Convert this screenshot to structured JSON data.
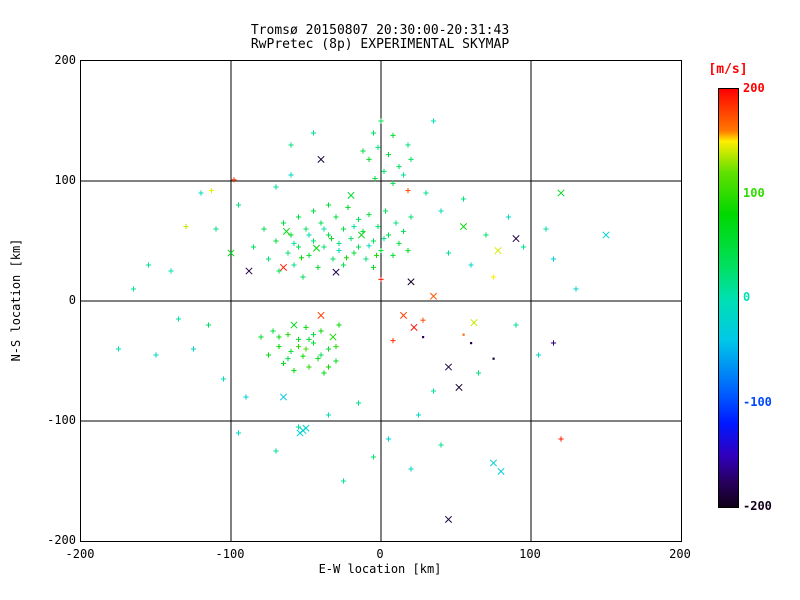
{
  "title": {
    "line1": "Tromsø 20150807 20:30:00-20:31:43",
    "line2": "RwPretec (8p) EXPERIMENTAL SKYMAP"
  },
  "axes": {
    "xlabel": "E-W location [km]",
    "ylabel": "N-S location [km]",
    "xlim": [
      -200,
      200
    ],
    "ylim": [
      -200,
      200
    ],
    "xticks": [
      -200,
      -100,
      0,
      100,
      200
    ],
    "yticks": [
      -200,
      -100,
      0,
      100,
      200
    ],
    "gridlines": [
      -100,
      0,
      100
    ],
    "grid_color": "#000000",
    "background": "#ffffff"
  },
  "colorbar": {
    "label": "[m/s]",
    "label_color": "#ff0000",
    "ticks": [
      200,
      100,
      0,
      -100,
      -200
    ],
    "range": [
      -200,
      200
    ]
  },
  "chart_data": {
    "type": "scatter",
    "title": "Tromsø 20150807 20:30:00-20:31:43 / RwPretec (8p) EXPERIMENTAL SKYMAP",
    "xlabel": "E-W location [km]",
    "ylabel": "N-S location [km]",
    "xlim": [
      -200,
      200
    ],
    "ylim": [
      -200,
      200
    ],
    "xticks": [
      -200,
      -100,
      0,
      100,
      200
    ],
    "yticks": [
      -200,
      -100,
      0,
      100,
      200
    ],
    "grid": true,
    "gridlines": [
      -100,
      0,
      100
    ],
    "color_scale": {
      "label": "[m/s]",
      "range": [
        -200,
        200
      ],
      "stops": [
        {
          "v": 200,
          "c": "#ff0000"
        },
        {
          "v": 160,
          "c": "#ff7800"
        },
        {
          "v": 150,
          "c": "#ffee00"
        },
        {
          "v": 120,
          "c": "#60e000"
        },
        {
          "v": 80,
          "c": "#00d800"
        },
        {
          "v": 30,
          "c": "#00e060"
        },
        {
          "v": 0,
          "c": "#00e0b0"
        },
        {
          "v": -40,
          "c": "#00c8e8"
        },
        {
          "v": -90,
          "c": "#0060ff"
        },
        {
          "v": -120,
          "c": "#0018ff"
        },
        {
          "v": -150,
          "c": "#3000c0"
        },
        {
          "v": -175,
          "c": "#280060"
        },
        {
          "v": -200,
          "c": "#100018"
        }
      ]
    },
    "point_format": [
      "x_km",
      "y_km",
      "velocity_m_per_s",
      "marker:0=plus,1=x,2=dot"
    ],
    "points": [
      [
        -85,
        45,
        30,
        0
      ],
      [
        -78,
        60,
        40,
        0
      ],
      [
        -75,
        35,
        20,
        0
      ],
      [
        -70,
        50,
        55,
        0
      ],
      [
        -68,
        25,
        35,
        0
      ],
      [
        -65,
        65,
        45,
        0
      ],
      [
        -62,
        40,
        25,
        0
      ],
      [
        -60,
        55,
        60,
        0
      ],
      [
        -58,
        30,
        15,
        0
      ],
      [
        -55,
        70,
        50,
        0
      ],
      [
        -55,
        45,
        35,
        0
      ],
      [
        -52,
        20,
        40,
        0
      ],
      [
        -50,
        60,
        30,
        0
      ],
      [
        -48,
        38,
        55,
        0
      ],
      [
        -45,
        75,
        45,
        0
      ],
      [
        -45,
        50,
        20,
        0
      ],
      [
        -42,
        28,
        60,
        0
      ],
      [
        -40,
        65,
        35,
        0
      ],
      [
        -38,
        45,
        25,
        0
      ],
      [
        -35,
        80,
        50,
        0
      ],
      [
        -35,
        55,
        40,
        0
      ],
      [
        -32,
        35,
        30,
        0
      ],
      [
        -30,
        70,
        55,
        0
      ],
      [
        -28,
        48,
        20,
        0
      ],
      [
        -25,
        60,
        45,
        0
      ],
      [
        -25,
        30,
        35,
        0
      ],
      [
        -22,
        78,
        60,
        0
      ],
      [
        -20,
        52,
        25,
        0
      ],
      [
        -18,
        40,
        50,
        0
      ],
      [
        -15,
        68,
        30,
        0
      ],
      [
        -15,
        45,
        40,
        0
      ],
      [
        -12,
        58,
        55,
        0
      ],
      [
        -10,
        35,
        20,
        0
      ],
      [
        -8,
        72,
        45,
        0
      ],
      [
        -5,
        50,
        35,
        0
      ],
      [
        -5,
        28,
        60,
        0
      ],
      [
        -2,
        62,
        25,
        0
      ],
      [
        0,
        42,
        50,
        0
      ],
      [
        3,
        75,
        30,
        0
      ],
      [
        5,
        55,
        40,
        0
      ],
      [
        8,
        38,
        55,
        0
      ],
      [
        10,
        65,
        20,
        0
      ],
      [
        12,
        48,
        45,
        0
      ],
      [
        15,
        58,
        35,
        0
      ],
      [
        18,
        42,
        60,
        0
      ],
      [
        20,
        70,
        25,
        0
      ],
      [
        -58,
        48,
        10,
        0
      ],
      [
        -48,
        55,
        -5,
        0
      ],
      [
        -38,
        60,
        5,
        0
      ],
      [
        -28,
        42,
        -10,
        0
      ],
      [
        -18,
        62,
        8,
        0
      ],
      [
        -8,
        46,
        -8,
        0
      ],
      [
        2,
        52,
        12,
        0
      ],
      [
        -63,
        58,
        70,
        1
      ],
      [
        -53,
        36,
        80,
        0
      ],
      [
        -43,
        44,
        75,
        1
      ],
      [
        -33,
        52,
        65,
        0
      ],
      [
        -23,
        36,
        85,
        0
      ],
      [
        -13,
        55,
        70,
        1
      ],
      [
        -3,
        38,
        90,
        0
      ],
      [
        -80,
        -30,
        60,
        0
      ],
      [
        -75,
        -45,
        70,
        0
      ],
      [
        -72,
        -25,
        50,
        0
      ],
      [
        -68,
        -38,
        80,
        0
      ],
      [
        -65,
        -52,
        65,
        0
      ],
      [
        -62,
        -28,
        90,
        0
      ],
      [
        -60,
        -42,
        55,
        0
      ],
      [
        -58,
        -58,
        75,
        0
      ],
      [
        -55,
        -32,
        60,
        0
      ],
      [
        -52,
        -46,
        85,
        0
      ],
      [
        -50,
        -22,
        70,
        0
      ],
      [
        -48,
        -55,
        95,
        0
      ],
      [
        -45,
        -35,
        50,
        0
      ],
      [
        -42,
        -48,
        65,
        0
      ],
      [
        -40,
        -25,
        80,
        0
      ],
      [
        -38,
        -60,
        70,
        0
      ],
      [
        -35,
        -40,
        55,
        0
      ],
      [
        -32,
        -30,
        90,
        1
      ],
      [
        -30,
        -50,
        60,
        0
      ],
      [
        -28,
        -20,
        75,
        0
      ],
      [
        -55,
        -38,
        100,
        0
      ],
      [
        -45,
        -28,
        45,
        0
      ],
      [
        -62,
        -48,
        40,
        0
      ],
      [
        -35,
        -55,
        85,
        0
      ],
      [
        -50,
        -40,
        110,
        0
      ],
      [
        -40,
        -45,
        35,
        0
      ],
      [
        -58,
        -20,
        65,
        1
      ],
      [
        -30,
        -38,
        95,
        0
      ],
      [
        -68,
        -30,
        75,
        0
      ],
      [
        -48,
        -32,
        58,
        0
      ],
      [
        0,
        150,
        40,
        0
      ],
      [
        -5,
        140,
        30,
        0
      ],
      [
        8,
        138,
        55,
        0
      ],
      [
        -2,
        128,
        20,
        0
      ],
      [
        5,
        122,
        45,
        0
      ],
      [
        -8,
        118,
        60,
        0
      ],
      [
        12,
        112,
        35,
        0
      ],
      [
        2,
        108,
        25,
        0
      ],
      [
        -4,
        102,
        50,
        0
      ],
      [
        15,
        105,
        15,
        0
      ],
      [
        8,
        98,
        40,
        0
      ],
      [
        20,
        118,
        30,
        0
      ],
      [
        -12,
        125,
        45,
        0
      ],
      [
        18,
        130,
        20,
        0
      ],
      [
        -140,
        25,
        0,
        0
      ],
      [
        -155,
        30,
        10,
        0
      ],
      [
        -120,
        90,
        -10,
        0
      ],
      [
        -135,
        -15,
        5,
        0
      ],
      [
        -125,
        -40,
        -20,
        0
      ],
      [
        -110,
        60,
        15,
        0
      ],
      [
        -105,
        -65,
        -5,
        0
      ],
      [
        -95,
        80,
        20,
        0
      ],
      [
        -150,
        -45,
        -15,
        0
      ],
      [
        -165,
        10,
        8,
        0
      ],
      [
        -90,
        -80,
        -25,
        0
      ],
      [
        -70,
        95,
        10,
        0
      ],
      [
        -60,
        105,
        -10,
        0
      ],
      [
        30,
        90,
        15,
        0
      ],
      [
        40,
        75,
        -5,
        0
      ],
      [
        55,
        85,
        20,
        0
      ],
      [
        45,
        40,
        10,
        0
      ],
      [
        60,
        30,
        -15,
        0
      ],
      [
        70,
        55,
        25,
        0
      ],
      [
        85,
        70,
        -10,
        0
      ],
      [
        95,
        45,
        15,
        0
      ],
      [
        110,
        60,
        5,
        0
      ],
      [
        150,
        55,
        -20,
        1
      ],
      [
        120,
        90,
        60,
        1
      ],
      [
        115,
        35,
        -30,
        0
      ],
      [
        90,
        -20,
        10,
        0
      ],
      [
        105,
        -45,
        -15,
        0
      ],
      [
        65,
        -60,
        20,
        0
      ],
      [
        35,
        -75,
        5,
        0
      ],
      [
        25,
        -95,
        -10,
        0
      ],
      [
        -15,
        -85,
        15,
        0
      ],
      [
        -35,
        -95,
        -5,
        0
      ],
      [
        -55,
        -105,
        10,
        0
      ],
      [
        5,
        -115,
        -20,
        0
      ],
      [
        -5,
        -130,
        25,
        0
      ],
      [
        20,
        -140,
        -15,
        0
      ],
      [
        -25,
        -150,
        5,
        0
      ],
      [
        -70,
        -125,
        10,
        0
      ],
      [
        -95,
        -110,
        -10,
        0
      ],
      [
        40,
        -120,
        15,
        0
      ],
      [
        -115,
        -20,
        30,
        0
      ],
      [
        130,
        10,
        -25,
        0
      ],
      [
        -175,
        -40,
        0,
        0
      ],
      [
        -60,
        130,
        20,
        0
      ],
      [
        -45,
        140,
        10,
        0
      ],
      [
        35,
        150,
        0,
        0
      ],
      [
        -65,
        -80,
        -40,
        1
      ],
      [
        75,
        -135,
        -30,
        1
      ],
      [
        80,
        -142,
        -35,
        1
      ],
      [
        -52,
        -108,
        -25,
        1
      ],
      [
        -50,
        -106,
        -20,
        1
      ],
      [
        -54,
        -110,
        -30,
        1
      ],
      [
        -98,
        101,
        185,
        0
      ],
      [
        -65,
        28,
        190,
        1
      ],
      [
        15,
        -12,
        180,
        1
      ],
      [
        22,
        -22,
        195,
        1
      ],
      [
        28,
        -16,
        175,
        0
      ],
      [
        8,
        -33,
        185,
        0
      ],
      [
        35,
        4,
        170,
        1
      ],
      [
        -40,
        -12,
        180,
        1
      ],
      [
        120,
        -115,
        190,
        0
      ],
      [
        18,
        92,
        175,
        0
      ],
      [
        55,
        -28,
        165,
        2
      ],
      [
        0,
        18,
        190,
        0
      ],
      [
        -113,
        92,
        145,
        0
      ],
      [
        75,
        20,
        150,
        0
      ],
      [
        62,
        -18,
        140,
        1
      ],
      [
        -130,
        62,
        138,
        0
      ],
      [
        78,
        42,
        142,
        1
      ],
      [
        -40,
        118,
        -190,
        1
      ],
      [
        -88,
        25,
        -185,
        1
      ],
      [
        -30,
        24,
        -180,
        1
      ],
      [
        20,
        16,
        -195,
        1
      ],
      [
        45,
        -55,
        -185,
        1
      ],
      [
        52,
        -72,
        -190,
        1
      ],
      [
        45,
        -182,
        -185,
        1
      ],
      [
        28,
        -30,
        -175,
        2
      ],
      [
        60,
        -35,
        -180,
        2
      ],
      [
        115,
        -35,
        -170,
        0
      ],
      [
        75,
        -48,
        -190,
        2
      ],
      [
        90,
        52,
        -185,
        1
      ],
      [
        -100,
        40,
        65,
        1
      ],
      [
        55,
        62,
        75,
        1
      ],
      [
        -20,
        88,
        55,
        1
      ]
    ]
  }
}
